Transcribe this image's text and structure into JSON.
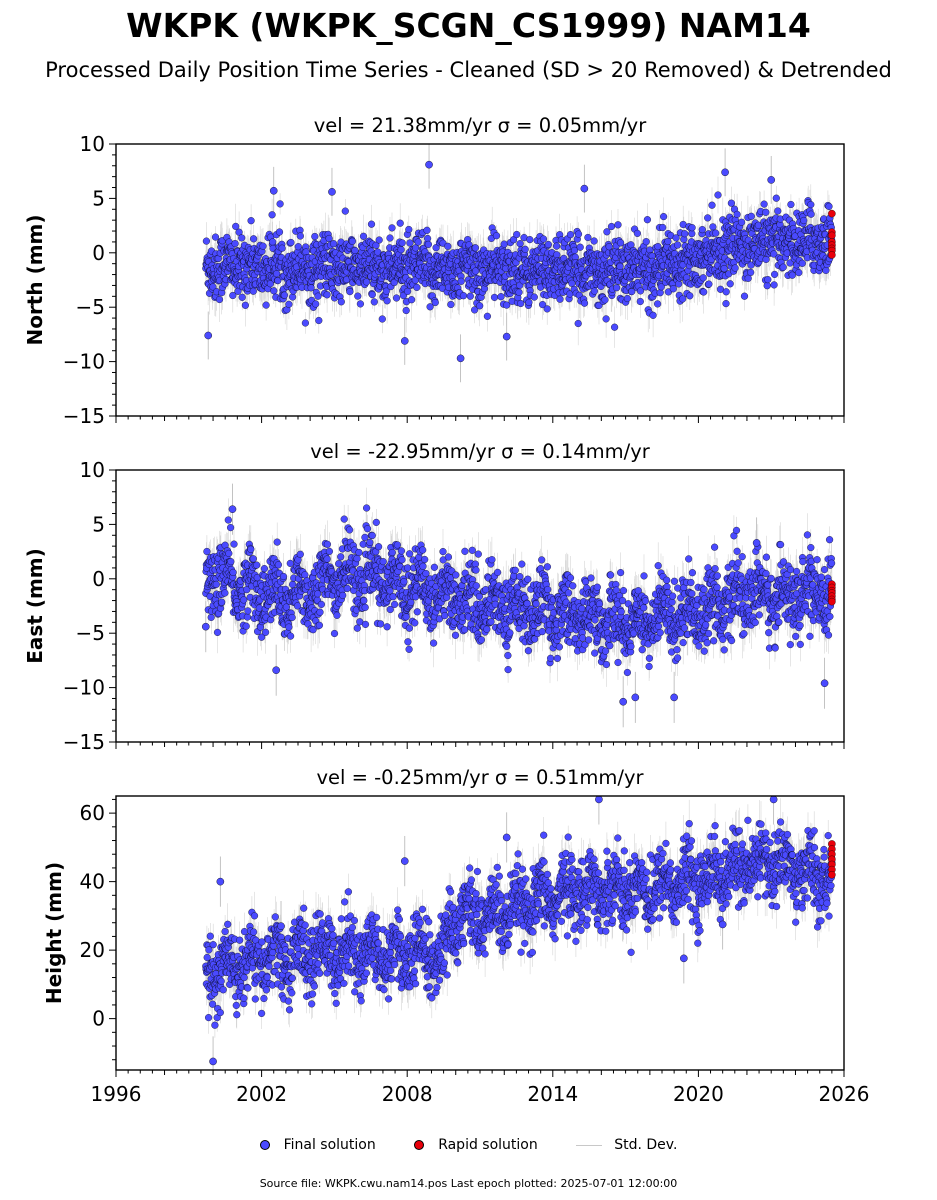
{
  "page": {
    "title": "WKPK (WKPK_SCGN_CS1999) NAM14",
    "subtitle": "Processed Daily Position Time Series - Cleaned (SD > 20 Removed) & Detrended",
    "footer": "Source file: WKPK.cwu.nam14.pos  Last epoch plotted: 2025-07-01 12:00:00"
  },
  "legend": {
    "final": "Final solution",
    "rapid": "Rapid solution",
    "std": "Std. Dev."
  },
  "colors": {
    "final": "#4a4aff",
    "rapid": "#e8000b",
    "std": "#b4b4b4",
    "outline": "#000000"
  },
  "chart_data": [
    {
      "type": "scatter",
      "title": "vel = 21.38mm/yr   σ = 0.05mm/yr",
      "ylabel": "North (mm)",
      "xlim": [
        1996,
        2026
      ],
      "ylim": [
        -15,
        10
      ],
      "yticks": [
        -15,
        -10,
        -5,
        0,
        5,
        10
      ],
      "yticklabels": [
        "−15",
        "−10",
        "−5",
        "0",
        "5",
        "10"
      ],
      "data_span": [
        1999.7,
        2025.5
      ],
      "trend": [
        [
          1999.7,
          -1.2
        ],
        [
          2011.0,
          -1.6
        ],
        [
          2018.0,
          -1.6
        ],
        [
          2019.5,
          -0.4
        ],
        [
          2022.0,
          0.8
        ],
        [
          2025.5,
          1.2
        ]
      ],
      "noise_sd": 1.5,
      "seasonal_amp": 0.4,
      "outliers": [
        [
          2008.9,
          8.1
        ],
        [
          2010.2,
          -9.7
        ],
        [
          2002.5,
          5.7
        ],
        [
          2004.9,
          5.6
        ],
        [
          2021.1,
          7.4
        ],
        [
          2023.0,
          6.7
        ],
        [
          2007.9,
          -8.1
        ],
        [
          1999.8,
          -7.6
        ],
        [
          2012.1,
          -7.7
        ],
        [
          2015.3,
          5.9
        ]
      ],
      "rapid": {
        "x": 2025.5,
        "values": [
          3.6,
          1.9,
          1.6,
          1.0,
          0.7,
          0.4,
          0.2,
          -0.2
        ]
      }
    },
    {
      "type": "scatter",
      "title": "vel = -22.95mm/yr   σ = 0.14mm/yr",
      "ylabel": "East (mm)",
      "xlim": [
        1996,
        2026
      ],
      "ylim": [
        -15,
        10
      ],
      "yticks": [
        -15,
        -10,
        -5,
        0,
        5,
        10
      ],
      "yticklabels": [
        "−15",
        "−10",
        "−5",
        "0",
        "5",
        "10"
      ],
      "data_span": [
        1999.7,
        2025.5
      ],
      "trend": [
        [
          1999.7,
          0.5
        ],
        [
          2003.0,
          -2.0
        ],
        [
          2005.5,
          0.5
        ],
        [
          2008.0,
          -0.5
        ],
        [
          2011.0,
          -2.2
        ],
        [
          2014.0,
          -3.0
        ],
        [
          2017.0,
          -4.0
        ],
        [
          2019.5,
          -3.0
        ],
        [
          2022.0,
          -1.6
        ],
        [
          2025.5,
          -1.6
        ]
      ],
      "noise_sd": 1.6,
      "seasonal_amp": 1.2,
      "outliers": [
        [
          2000.8,
          6.4
        ],
        [
          2022.4,
          3.3
        ],
        [
          2002.6,
          -8.4
        ],
        [
          2016.9,
          -11.3
        ],
        [
          2017.4,
          -10.9
        ],
        [
          2019.0,
          -10.9
        ],
        [
          1999.7,
          -4.4
        ],
        [
          2025.2,
          -9.6
        ]
      ],
      "rapid": {
        "x": 2025.5,
        "values": [
          -0.5,
          -0.8,
          -1.1,
          -1.3,
          -1.6,
          -1.9,
          -2.1
        ]
      }
    },
    {
      "type": "scatter",
      "title": "vel = -0.25mm/yr   σ = 0.51mm/yr",
      "ylabel": "Height (mm)",
      "xlim": [
        1996,
        2026
      ],
      "ylim": [
        -15,
        65
      ],
      "yticks": [
        0,
        20,
        40,
        60
      ],
      "yticklabels": [
        "0",
        "20",
        "40",
        "60"
      ],
      "xticks": [
        1996,
        2002,
        2008,
        2014,
        2020,
        2026
      ],
      "xticklabels": [
        "1996",
        "2002",
        "2008",
        "2014",
        "2020",
        "2026"
      ],
      "data_span": [
        1999.7,
        2025.5
      ],
      "trend": [
        [
          1999.7,
          14
        ],
        [
          2005.0,
          20
        ],
        [
          2009.5,
          18
        ],
        [
          2010.0,
          30
        ],
        [
          2012.0,
          30
        ],
        [
          2015.0,
          38
        ],
        [
          2018.0,
          38
        ],
        [
          2021.0,
          42
        ],
        [
          2023.0,
          46
        ],
        [
          2025.5,
          40
        ]
      ],
      "noise_sd": 5.0,
      "seasonal_amp": 4.0,
      "outliers": [
        [
          2000.0,
          -12.5
        ],
        [
          2000.3,
          40.0
        ],
        [
          2002.8,
          27.0
        ],
        [
          2007.9,
          46.0
        ],
        [
          2012.1,
          52.9
        ],
        [
          2019.4,
          17.6
        ],
        [
          2015.9,
          64.0
        ],
        [
          2023.1,
          64.0
        ],
        [
          2021.0,
          27.5
        ]
      ],
      "rapid": {
        "x": 2025.5,
        "values": [
          51.0,
          49.5,
          48.0,
          46.5,
          45.0,
          43.5,
          42.0
        ]
      }
    }
  ]
}
